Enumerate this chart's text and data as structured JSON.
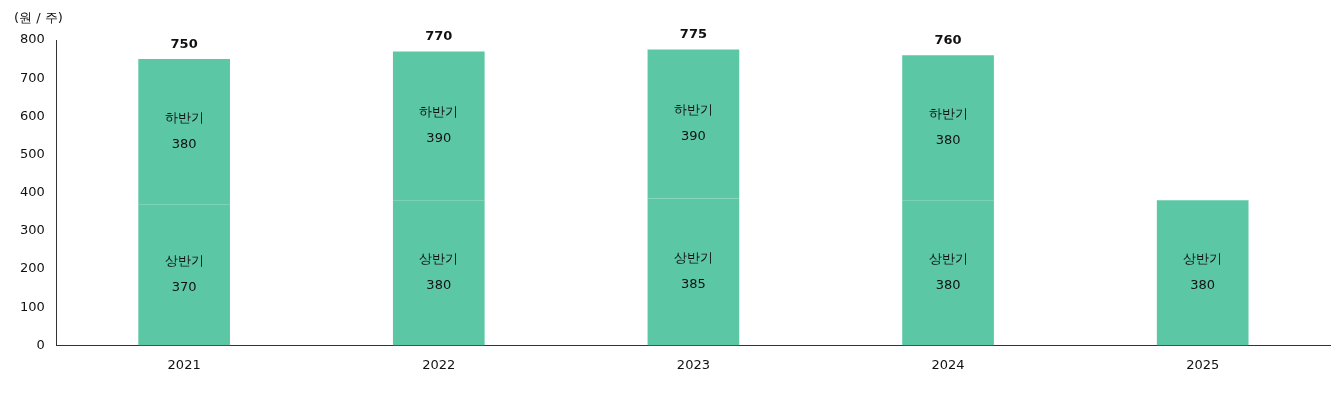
{
  "chart_data": {
    "type": "bar",
    "stacked": true,
    "ylabel": "(원 / 주)",
    "categories": [
      "2021",
      "2022",
      "2023",
      "2024",
      "2025"
    ],
    "series": [
      {
        "name": "상반기",
        "color": "#5cc7a4",
        "values": [
          370,
          380,
          385,
          380,
          380
        ]
      },
      {
        "name": "하반기",
        "color": "#5cc7a4",
        "values": [
          380,
          390,
          390,
          380,
          null
        ]
      }
    ],
    "totals": [
      "750",
      "770",
      "775",
      "760",
      null
    ],
    "data_labels": true,
    "ylim": [
      0,
      800
    ],
    "yticks": [
      0,
      100,
      200,
      300,
      400,
      500,
      600,
      700,
      800
    ],
    "grid": false,
    "legend": false
  }
}
